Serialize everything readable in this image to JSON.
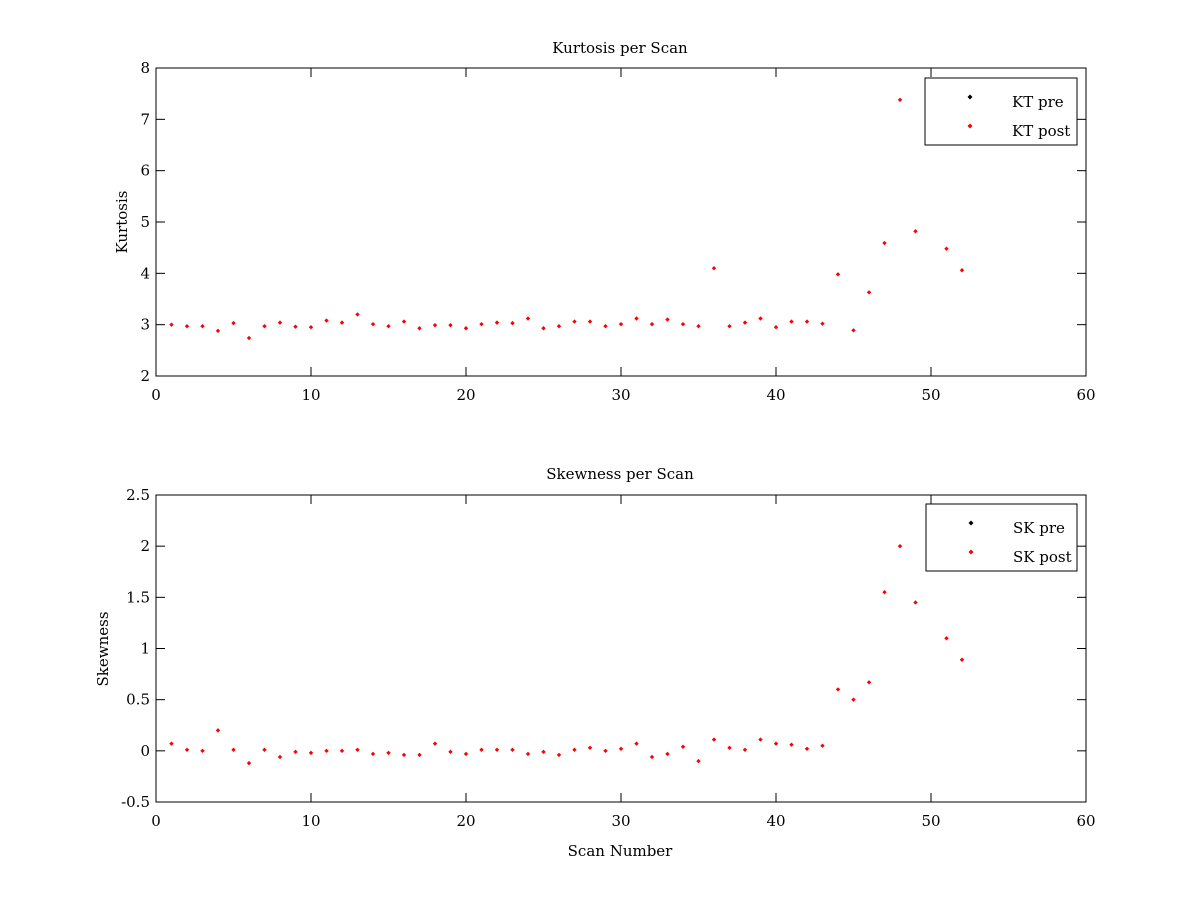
{
  "chart_data": [
    {
      "type": "scatter",
      "title": "Kurtosis per Scan",
      "xlabel": "",
      "ylabel": "Kurtosis",
      "xlim": [
        0,
        60
      ],
      "ylim": [
        2,
        8
      ],
      "xticks": [
        0,
        10,
        20,
        30,
        40,
        50,
        60
      ],
      "xtick_labels": [
        "0",
        "10",
        "20",
        "30",
        "40",
        "50",
        "60"
      ],
      "yticks": [
        2,
        3,
        4,
        5,
        6,
        7,
        8
      ],
      "ytick_labels": [
        "2",
        "3",
        "4",
        "5",
        "6",
        "7",
        "8"
      ],
      "grid": false,
      "legend_position": "top-right",
      "series": [
        {
          "name": "KT pre",
          "color": "#000000",
          "marker": "dot",
          "x": [],
          "y": []
        },
        {
          "name": "KT post",
          "color": "#ff0000",
          "marker": "dot",
          "x": [
            1,
            2,
            3,
            4,
            5,
            6,
            7,
            8,
            9,
            10,
            11,
            12,
            13,
            14,
            15,
            16,
            17,
            18,
            19,
            20,
            21,
            22,
            23,
            24,
            25,
            26,
            27,
            28,
            29,
            30,
            31,
            32,
            33,
            34,
            35,
            36,
            37,
            38,
            39,
            40,
            41,
            42,
            43,
            44,
            45,
            46,
            47,
            48,
            49,
            51,
            52
          ],
          "y": [
            3.0,
            2.97,
            2.97,
            2.88,
            3.03,
            2.74,
            2.97,
            3.04,
            2.96,
            2.95,
            3.08,
            3.04,
            3.2,
            3.01,
            2.97,
            3.06,
            2.93,
            2.99,
            2.99,
            2.93,
            3.01,
            3.04,
            3.03,
            3.12,
            2.93,
            2.97,
            3.06,
            3.06,
            2.97,
            3.01,
            3.12,
            3.01,
            3.1,
            3.01,
            2.97,
            4.1,
            2.97,
            3.04,
            3.12,
            2.95,
            3.06,
            3.06,
            3.02,
            3.98,
            2.89,
            3.63,
            4.59,
            7.38,
            4.82,
            4.48,
            4.06
          ]
        }
      ]
    },
    {
      "type": "scatter",
      "title": "Skewness per Scan",
      "xlabel": "Scan Number",
      "ylabel": "Skewness",
      "xlim": [
        0,
        60
      ],
      "ylim": [
        -0.5,
        2.5
      ],
      "xticks": [
        0,
        10,
        20,
        30,
        40,
        50,
        60
      ],
      "xtick_labels": [
        "0",
        "10",
        "20",
        "30",
        "40",
        "50",
        "60"
      ],
      "yticks": [
        -0.5,
        0,
        0.5,
        1,
        1.5,
        2,
        2.5
      ],
      "ytick_labels": [
        "-0.5",
        "0",
        "0.5",
        "1",
        "1.5",
        "2",
        "2.5"
      ],
      "grid": false,
      "legend_position": "top-right",
      "series": [
        {
          "name": "SK pre",
          "color": "#000000",
          "marker": "dot",
          "x": [],
          "y": []
        },
        {
          "name": "SK post",
          "color": "#ff0000",
          "marker": "dot",
          "x": [
            1,
            2,
            3,
            4,
            5,
            6,
            7,
            8,
            9,
            10,
            11,
            12,
            13,
            14,
            15,
            16,
            17,
            18,
            19,
            20,
            21,
            22,
            23,
            24,
            25,
            26,
            27,
            28,
            29,
            30,
            31,
            32,
            33,
            34,
            35,
            36,
            37,
            38,
            39,
            40,
            41,
            42,
            43,
            44,
            45,
            46,
            47,
            48,
            49,
            51,
            52
          ],
          "y": [
            0.07,
            0.01,
            0.0,
            0.2,
            0.01,
            -0.12,
            0.01,
            -0.06,
            -0.01,
            -0.02,
            0.0,
            0.0,
            0.01,
            -0.03,
            -0.02,
            -0.04,
            -0.04,
            0.07,
            -0.01,
            -0.03,
            0.01,
            0.01,
            0.01,
            -0.03,
            -0.01,
            -0.04,
            0.01,
            0.03,
            0.0,
            0.02,
            0.07,
            -0.06,
            -0.03,
            0.04,
            -0.1,
            0.11,
            0.03,
            0.01,
            0.11,
            0.07,
            0.06,
            0.02,
            0.05,
            0.6,
            0.5,
            0.67,
            1.55,
            2.0,
            1.45,
            1.1,
            0.89
          ]
        }
      ]
    }
  ]
}
